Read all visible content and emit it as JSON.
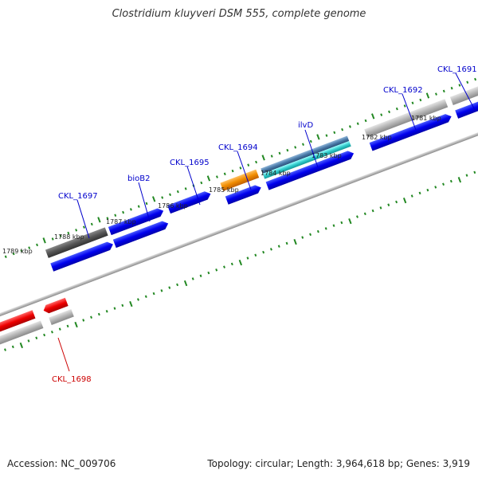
{
  "title": "Clostridium kluyveri DSM 555, complete genome",
  "footer": {
    "accession": "Accession: NC_009706",
    "summary": "Topology: circular; Length: 3,964,618 bp; Genes: 3,919"
  },
  "scale": {
    "ticks": [
      "1789 kbp",
      "1788 kbp",
      "1787 kbp",
      "1786 kbp",
      "1785 kbp",
      "1784 kbp",
      "1783 kbp",
      "1782 kbp",
      "1781 kbp"
    ]
  },
  "genes": {
    "labels": [
      "CKL_1691",
      "CKL_1692",
      "ilvD",
      "CKL_1694",
      "CKL_1695",
      "bioB2",
      "CKL_1697",
      "CKL_1698"
    ]
  },
  "colors": {
    "forward_cds": "#0000dd",
    "reverse_cds": "#ee0000",
    "highlight_orange": "#f08c00",
    "highlight_teal": "#33cccc",
    "gene_gray": "#b0b0b0",
    "gene_dark": "#555555",
    "label_blue": "#0000cc",
    "label_red": "#cc0000",
    "tick_green": "#228822"
  }
}
